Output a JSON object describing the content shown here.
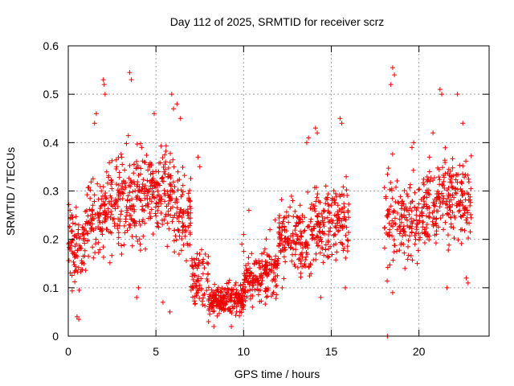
{
  "chart_data": {
    "type": "scatter",
    "title": "Day 112 of 2025, SRMTID for receiver scrz",
    "xlabel": "GPS time / hours",
    "ylabel": "SRMTID / TECUs",
    "xlim": [
      0,
      24
    ],
    "ylim": [
      0,
      0.6
    ],
    "xticks": [
      0,
      5,
      10,
      15,
      20
    ],
    "xtick_labels": [
      "0",
      "5",
      "10",
      "15",
      "20"
    ],
    "yticks": [
      0,
      0.1,
      0.2,
      0.3,
      0.4,
      0.5,
      0.6
    ],
    "ytick_labels": [
      "0",
      "0.1",
      "0.2",
      "0.3",
      "0.4",
      "0.5",
      "0.6"
    ],
    "grid": true,
    "marker": "+",
    "marker_color": "#ee0000",
    "series": [
      {
        "name": "SRMTID",
        "segments": [
          {
            "x_start": 0.0,
            "x_end": 1.0,
            "center": 0.19,
            "spread": 0.09,
            "count": 90,
            "points": [
              [
                0.1,
                0.26
              ],
              [
                0.5,
                0.04
              ],
              [
                0.6,
                0.035
              ]
            ]
          },
          {
            "x_start": 1.0,
            "x_end": 2.0,
            "center": 0.24,
            "spread": 0.1,
            "count": 80,
            "points": [
              [
                1.6,
                0.46
              ],
              [
                1.5,
                0.44
              ]
            ]
          },
          {
            "x_start": 2.0,
            "x_end": 3.0,
            "center": 0.27,
            "spread": 0.11,
            "count": 90,
            "points": [
              [
                2.0,
                0.53
              ],
              [
                2.05,
                0.52
              ],
              [
                2.1,
                0.5
              ]
            ]
          },
          {
            "x_start": 3.0,
            "x_end": 4.0,
            "center": 0.29,
            "spread": 0.12,
            "count": 95,
            "points": [
              [
                3.5,
                0.545
              ],
              [
                3.6,
                0.53
              ],
              [
                3.9,
                0.08
              ],
              [
                4.0,
                0.1
              ]
            ]
          },
          {
            "x_start": 4.0,
            "x_end": 5.0,
            "center": 0.3,
            "spread": 0.11,
            "count": 90,
            "points": [
              [
                4.1,
                0.19
              ],
              [
                4.4,
                0.18
              ],
              [
                4.9,
                0.46
              ]
            ]
          },
          {
            "x_start": 5.0,
            "x_end": 6.0,
            "center": 0.3,
            "spread": 0.11,
            "count": 90,
            "points": [
              [
                5.8,
                0.05
              ],
              [
                5.4,
                0.07
              ],
              [
                5.9,
                0.5
              ]
            ]
          },
          {
            "x_start": 6.0,
            "x_end": 7.0,
            "center": 0.25,
            "spread": 0.1,
            "count": 85,
            "points": [
              [
                6.2,
                0.48
              ],
              [
                6.4,
                0.45
              ],
              [
                6.0,
                0.47
              ]
            ]
          },
          {
            "x_start": 7.0,
            "x_end": 8.0,
            "center": 0.12,
            "spread": 0.07,
            "count": 75,
            "points": [
              [
                7.4,
                0.37
              ],
              [
                7.5,
                0.35
              ]
            ]
          },
          {
            "x_start": 8.0,
            "x_end": 9.0,
            "center": 0.075,
            "spread": 0.035,
            "count": 110,
            "points": [
              [
                8.0,
                0.03
              ],
              [
                8.3,
                0.02
              ]
            ]
          },
          {
            "x_start": 9.0,
            "x_end": 10.0,
            "center": 0.08,
            "spread": 0.045,
            "count": 100,
            "points": [
              [
                9.3,
                0.02
              ],
              [
                9.6,
                0.05
              ],
              [
                9.9,
                0.19
              ],
              [
                10.0,
                0.21
              ]
            ]
          },
          {
            "x_start": 10.0,
            "x_end": 11.0,
            "center": 0.12,
            "spread": 0.06,
            "count": 90,
            "points": [
              [
                10.3,
                0.26
              ],
              [
                10.5,
                0.06
              ]
            ]
          },
          {
            "x_start": 11.0,
            "x_end": 12.0,
            "center": 0.13,
            "spread": 0.06,
            "count": 85,
            "points": [
              [
                11.5,
                0.22
              ],
              [
                11.8,
                0.24
              ]
            ]
          },
          {
            "x_start": 12.0,
            "x_end": 13.0,
            "center": 0.2,
            "spread": 0.08,
            "count": 85,
            "points": [
              [
                12.8,
                0.28
              ],
              [
                12.2,
                0.1
              ]
            ]
          },
          {
            "x_start": 13.0,
            "x_end": 14.0,
            "center": 0.21,
            "spread": 0.09,
            "count": 85,
            "points": [
              [
                13.7,
                0.41
              ],
              [
                13.6,
                0.4
              ]
            ]
          },
          {
            "x_start": 14.0,
            "x_end": 15.0,
            "center": 0.23,
            "spread": 0.1,
            "count": 90,
            "points": [
              [
                14.1,
                0.43
              ],
              [
                14.2,
                0.42
              ],
              [
                14.4,
                0.08
              ]
            ]
          },
          {
            "x_start": 15.0,
            "x_end": 16.0,
            "center": 0.23,
            "spread": 0.1,
            "count": 85,
            "points": [
              [
                15.5,
                0.45
              ],
              [
                15.6,
                0.44
              ],
              [
                15.8,
                0.1
              ]
            ]
          },
          {
            "x_start": 18.0,
            "x_end": 19.0,
            "center": 0.24,
            "spread": 0.12,
            "count": 70,
            "points": [
              [
                18.2,
                0.0
              ],
              [
                18.4,
                0.52
              ],
              [
                18.5,
                0.555
              ],
              [
                18.6,
                0.54
              ],
              [
                18.5,
                0.09
              ]
            ]
          },
          {
            "x_start": 19.0,
            "x_end": 20.0,
            "center": 0.24,
            "spread": 0.09,
            "count": 80,
            "points": [
              [
                19.6,
                0.39
              ],
              [
                19.7,
                0.4
              ],
              [
                19.2,
                0.14
              ]
            ]
          },
          {
            "x_start": 20.0,
            "x_end": 21.0,
            "center": 0.26,
            "spread": 0.1,
            "count": 85,
            "points": [
              [
                20.6,
                0.37
              ],
              [
                20.8,
                0.42
              ]
            ]
          },
          {
            "x_start": 21.0,
            "x_end": 22.0,
            "center": 0.29,
            "spread": 0.11,
            "count": 90,
            "points": [
              [
                21.2,
                0.51
              ],
              [
                21.3,
                0.5
              ],
              [
                21.6,
                0.1
              ]
            ]
          },
          {
            "x_start": 22.0,
            "x_end": 23.0,
            "center": 0.28,
            "spread": 0.1,
            "count": 80,
            "points": [
              [
                22.2,
                0.5
              ],
              [
                22.5,
                0.44
              ],
              [
                22.8,
                0.11
              ],
              [
                22.7,
                0.12
              ]
            ]
          }
        ]
      }
    ]
  }
}
